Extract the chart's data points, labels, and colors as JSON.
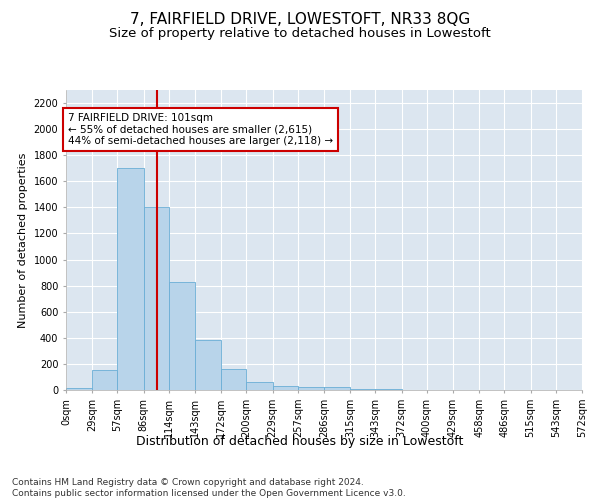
{
  "title": "7, FAIRFIELD DRIVE, LOWESTOFT, NR33 8QG",
  "subtitle": "Size of property relative to detached houses in Lowestoft",
  "xlabel": "Distribution of detached houses by size in Lowestoft",
  "ylabel": "Number of detached properties",
  "bin_edges": [
    0,
    29,
    57,
    86,
    114,
    143,
    172,
    200,
    229,
    257,
    286,
    315,
    343,
    372,
    400,
    429,
    458,
    486,
    515,
    543,
    572
  ],
  "bar_heights": [
    15,
    150,
    1700,
    1400,
    830,
    380,
    160,
    65,
    30,
    25,
    25,
    10,
    5,
    0,
    0,
    0,
    0,
    0,
    0,
    0
  ],
  "bar_color": "#b8d4ea",
  "bar_edge_color": "#6aaed6",
  "property_line_x": 101,
  "property_line_color": "#cc0000",
  "annotation_text": "7 FAIRFIELD DRIVE: 101sqm\n← 55% of detached houses are smaller (2,615)\n44% of semi-detached houses are larger (2,118) →",
  "annotation_box_color": "#ffffff",
  "annotation_box_edge_color": "#cc0000",
  "ylim": [
    0,
    2300
  ],
  "yticks": [
    0,
    200,
    400,
    600,
    800,
    1000,
    1200,
    1400,
    1600,
    1800,
    2000,
    2200
  ],
  "plot_bg_color": "#dce6f0",
  "footer_text": "Contains HM Land Registry data © Crown copyright and database right 2024.\nContains public sector information licensed under the Open Government Licence v3.0.",
  "title_fontsize": 11,
  "subtitle_fontsize": 9.5,
  "xlabel_fontsize": 9,
  "ylabel_fontsize": 8,
  "tick_fontsize": 7,
  "annotation_fontsize": 7.5,
  "footer_fontsize": 6.5
}
